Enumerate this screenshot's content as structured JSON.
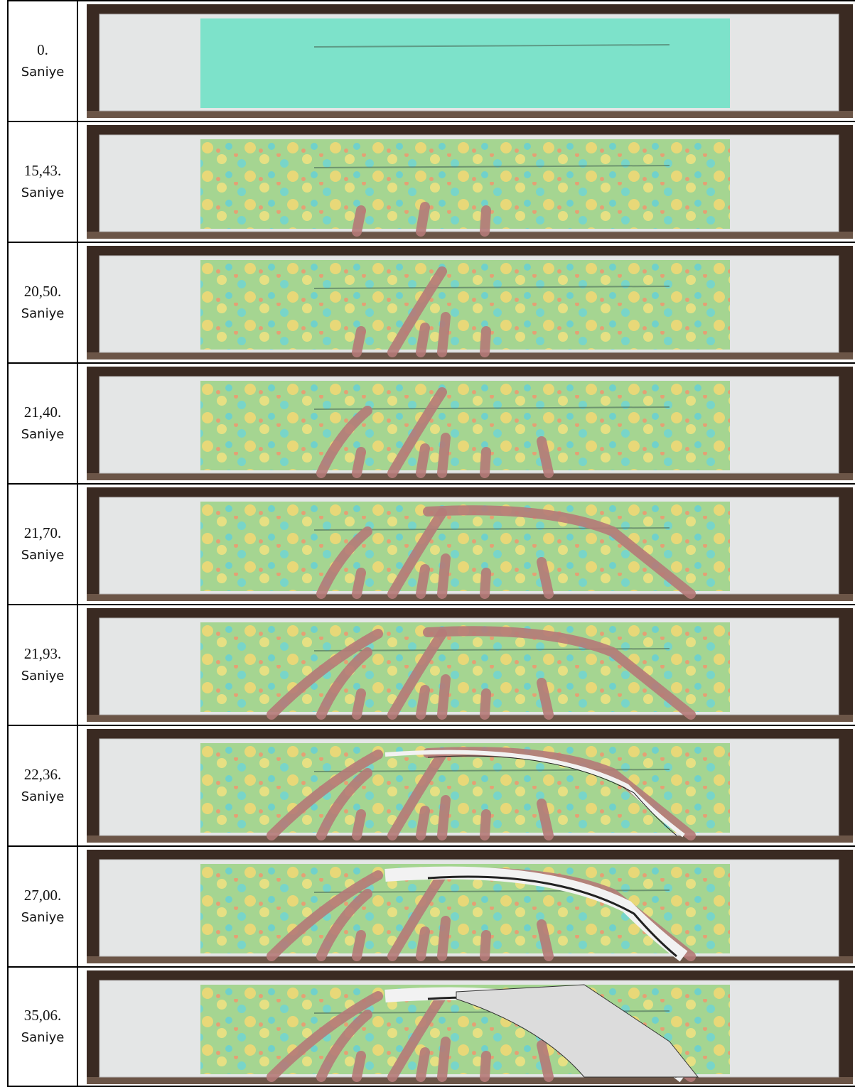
{
  "rows": [
    {
      "time": "0.",
      "unit": "Saniye"
    },
    {
      "time": "15,43.",
      "unit": "Saniye"
    },
    {
      "time": "20,50.",
      "unit": "Saniye"
    },
    {
      "time": "21,40.",
      "unit": "Saniye"
    },
    {
      "time": "21,70.",
      "unit": "Saniye"
    },
    {
      "time": "21,93.",
      "unit": "Saniye"
    },
    {
      "time": "22,36.",
      "unit": "Saniye"
    },
    {
      "time": "27,00.",
      "unit": "Saniye"
    },
    {
      "time": "35,06.",
      "unit": "Saniye"
    }
  ]
}
